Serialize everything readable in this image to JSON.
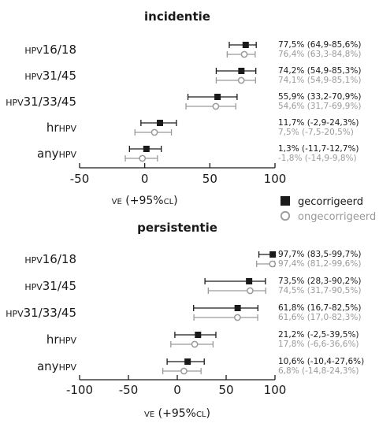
{
  "colors": {
    "corrected": "#1a1a1a",
    "uncorrected": "#9a9a9a"
  },
  "legend": {
    "corrected": "gecorrigeerd",
    "uncorrected": "ongecorrigeerd",
    "placement": "right, between panels"
  },
  "chart_data": [
    {
      "type": "forest",
      "title": "incidentie",
      "xlabel_prefix": "VE",
      "xlabel_suffix": " (+95%",
      "xlabel_unit": "CL",
      "xlabel_close": ")",
      "xlim": [
        -50,
        100
      ],
      "xticks": [
        "-50",
        "0",
        "50",
        "100"
      ],
      "xtick_values": [
        -50,
        0,
        50,
        100
      ],
      "grid": false,
      "rows": [
        {
          "label_prefix": "HPV",
          "label_main": "16/18",
          "label_suffix": "",
          "corrected": {
            "ve": 77.5,
            "lo": 64.9,
            "hi": 85.6,
            "text": "77,5% (64,9-85,6%)"
          },
          "uncorrected": {
            "ve": 76.4,
            "lo": 63.3,
            "hi": 84.8,
            "text": "76,4% (63,3-84,8%)"
          }
        },
        {
          "label_prefix": "HPV",
          "label_main": "31/45",
          "label_suffix": "",
          "corrected": {
            "ve": 74.2,
            "lo": 54.9,
            "hi": 85.3,
            "text": "74,2% (54,9-85,3%)"
          },
          "uncorrected": {
            "ve": 74.1,
            "lo": 54.9,
            "hi": 85.1,
            "text": "74,1% (54,9-85,1%)"
          }
        },
        {
          "label_prefix": "HPV",
          "label_main": "31/33/45",
          "label_suffix": "",
          "corrected": {
            "ve": 55.9,
            "lo": 33.2,
            "hi": 70.9,
            "text": "55,9% (33,2-70,9%)"
          },
          "uncorrected": {
            "ve": 54.6,
            "lo": 31.7,
            "hi": 69.9,
            "text": "54,6% (31,7-69,9%)"
          }
        },
        {
          "label_prefix": "",
          "label_main": "hr",
          "label_suffix": "HPV",
          "corrected": {
            "ve": 11.7,
            "lo": -2.9,
            "hi": 24.3,
            "text": "11,7% (-2,9-24,3%)"
          },
          "uncorrected": {
            "ve": 7.5,
            "lo": -7.5,
            "hi": 20.5,
            "text": "7,5% (-7,5-20,5%)"
          }
        },
        {
          "label_prefix": "",
          "label_main": "any",
          "label_suffix": "HPV",
          "corrected": {
            "ve": 1.3,
            "lo": -11.7,
            "hi": 12.7,
            "text": "1,3% (-11,7-12,7%)"
          },
          "uncorrected": {
            "ve": -1.8,
            "lo": -14.9,
            "hi": 9.8,
            "text": "-1,8% (-14,9-9,8%)"
          }
        }
      ]
    },
    {
      "type": "forest",
      "title": "persistentie",
      "xlabel_prefix": "VE",
      "xlabel_suffix": " (+95%",
      "xlabel_unit": "CL",
      "xlabel_close": ")",
      "xlim": [
        -100,
        100
      ],
      "xticks": [
        "-100",
        "-50",
        "0",
        "50",
        "100"
      ],
      "xtick_values": [
        -100,
        -50,
        0,
        50,
        100
      ],
      "grid": false,
      "rows": [
        {
          "label_prefix": "HPV",
          "label_main": "16/18",
          "label_suffix": "",
          "corrected": {
            "ve": 97.7,
            "lo": 83.5,
            "hi": 99.7,
            "text": "97,7% (83,5-99,7%)"
          },
          "uncorrected": {
            "ve": 97.4,
            "lo": 81.2,
            "hi": 99.6,
            "text": "97,4% (81,2-99,6%)"
          }
        },
        {
          "label_prefix": "HPV",
          "label_main": "31/45",
          "label_suffix": "",
          "corrected": {
            "ve": 73.5,
            "lo": 28.3,
            "hi": 90.2,
            "text": "73,5% (28,3-90,2%)"
          },
          "uncorrected": {
            "ve": 74.5,
            "lo": 31.7,
            "hi": 90.5,
            "text": "74,5% (31,7-90,5%)"
          }
        },
        {
          "label_prefix": "HPV",
          "label_main": "31/33/45",
          "label_suffix": "",
          "corrected": {
            "ve": 61.8,
            "lo": 16.7,
            "hi": 82.5,
            "text": "61,8% (16,7-82,5%)"
          },
          "uncorrected": {
            "ve": 61.6,
            "lo": 17.0,
            "hi": 82.3,
            "text": "61,6% (17,0-82,3%)"
          }
        },
        {
          "label_prefix": "",
          "label_main": "hr",
          "label_suffix": "HPV",
          "corrected": {
            "ve": 21.2,
            "lo": -2.5,
            "hi": 39.5,
            "text": "21,2% (-2,5-39,5%)"
          },
          "uncorrected": {
            "ve": 17.8,
            "lo": -6.6,
            "hi": 36.6,
            "text": "17,8% (-6,6-36,6%)"
          }
        },
        {
          "label_prefix": "",
          "label_main": "any",
          "label_suffix": "HPV",
          "corrected": {
            "ve": 10.6,
            "lo": -10.4,
            "hi": 27.6,
            "text": "10,6% (-10,4-27,6%)"
          },
          "uncorrected": {
            "ve": 6.8,
            "lo": -14.8,
            "hi": 24.3,
            "text": "6,8% (-14,8-24,3%)"
          }
        }
      ]
    }
  ]
}
